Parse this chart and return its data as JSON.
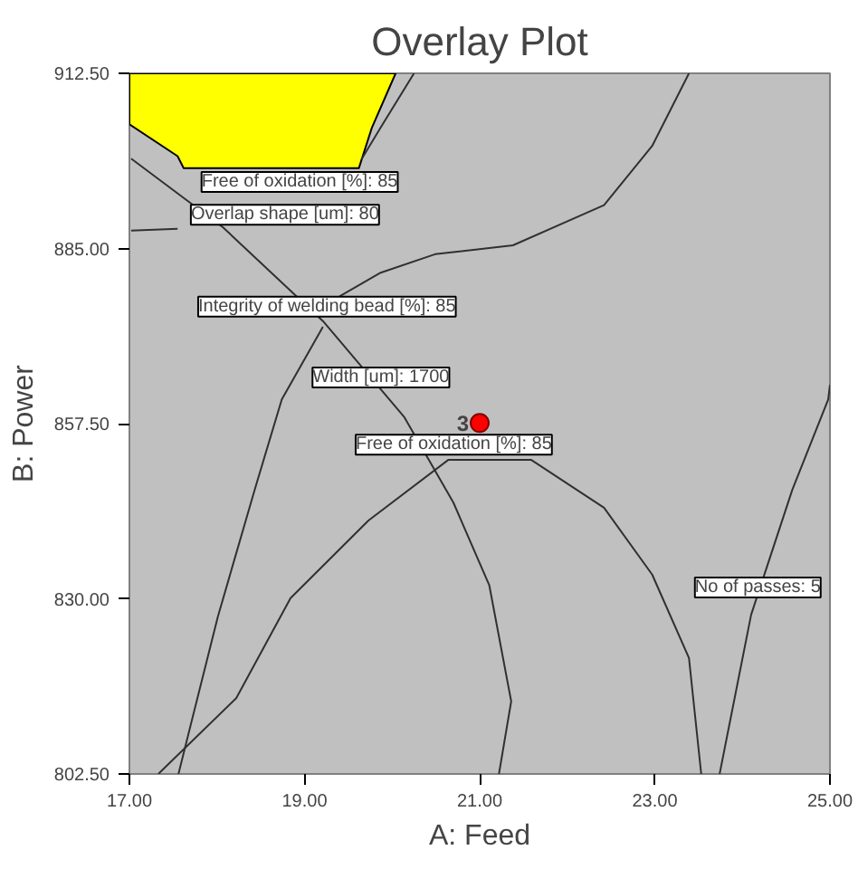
{
  "chart_data": {
    "type": "line",
    "title": "Overlay Plot",
    "xlabel": "A: Feed",
    "ylabel": "B: Power",
    "xlim": [
      17,
      25
    ],
    "ylim": [
      802.5,
      912.5
    ],
    "xticks": [
      {
        "value": 17,
        "label": "17.00"
      },
      {
        "value": 19,
        "label": "19.00"
      },
      {
        "value": 21,
        "label": "21.00"
      },
      {
        "value": 23,
        "label": "23.00"
      },
      {
        "value": 25,
        "label": "25.00"
      }
    ],
    "yticks": [
      {
        "value": 802.5,
        "label": "802.50"
      },
      {
        "value": 830,
        "label": "830.00"
      },
      {
        "value": 857.5,
        "label": "857.50"
      },
      {
        "value": 885,
        "label": "885.00"
      },
      {
        "value": 912.5,
        "label": "912.50"
      }
    ],
    "grid": false,
    "marker": "none",
    "line_style": "solid",
    "series": [
      {
        "type": "area",
        "color": "#ffff00",
        "x": [
          17.0,
          17.0,
          17.55,
          17.62,
          19.62,
          19.77,
          20.04
        ],
        "values": [
          912.5,
          904.5,
          899.5,
          897.6,
          897.6,
          904.0,
          912.5
        ]
      },
      {
        "color": "#303030",
        "x": [
          17.02,
          18.07,
          19.21,
          20.14,
          20.7,
          21.11,
          21.36,
          21.22
        ],
        "values": [
          899.1,
          888.3,
          873.6,
          858.5,
          845.1,
          832.1,
          813.9,
          802.5
        ]
      },
      {
        "color": "#303030",
        "x": [
          19.21,
          18.74,
          18.43,
          18.01,
          17.7,
          17.56
        ],
        "values": [
          872.7,
          861.3,
          847.1,
          827.2,
          810.2,
          802.5
        ]
      },
      {
        "color": "#303030",
        "x": [
          19.4,
          19.87,
          20.49,
          21.38,
          22.42,
          22.97,
          23.39
        ],
        "values": [
          877.5,
          881.2,
          884.1,
          885.5,
          891.8,
          901.1,
          912.5
        ]
      },
      {
        "color": "#303030",
        "x": [
          17.33,
          18.22,
          18.84,
          19.73,
          20.64,
          21.59,
          22.42,
          22.97,
          23.39,
          23.53
        ],
        "values": [
          802.5,
          814.4,
          830.1,
          842.3,
          851.8,
          851.8,
          844.3,
          833.8,
          820.7,
          802.5
        ]
      },
      {
        "color": "#303030",
        "x": [
          23.74,
          24.1,
          24.57,
          24.98,
          25.0
        ],
        "values": [
          802.5,
          827.5,
          847.1,
          861.3,
          863.6
        ]
      },
      {
        "color": "#303030",
        "x": [
          17.02,
          17.55
        ],
        "values": [
          887.8,
          888.1
        ]
      },
      {
        "color": "#303030",
        "x": [
          20.25,
          19.87,
          19.65
        ],
        "values": [
          912.5,
          904.0,
          899.0
        ]
      },
      {
        "type": "scatter",
        "color": "#ff0000",
        "marker": "circle",
        "x": [
          21.0
        ],
        "values": [
          857.6
        ]
      }
    ],
    "annotations": [
      "Free of oxidation [%]: 85",
      "Overlap shape [um]: 80",
      "Integrity of welding bead [%]: 85",
      "Width [um]: 1700",
      "Free of oxidation [%]: 85",
      "No of passes: 5",
      {
        "text": "3",
        "x": 21.0,
        "y": 857.6
      }
    ]
  }
}
